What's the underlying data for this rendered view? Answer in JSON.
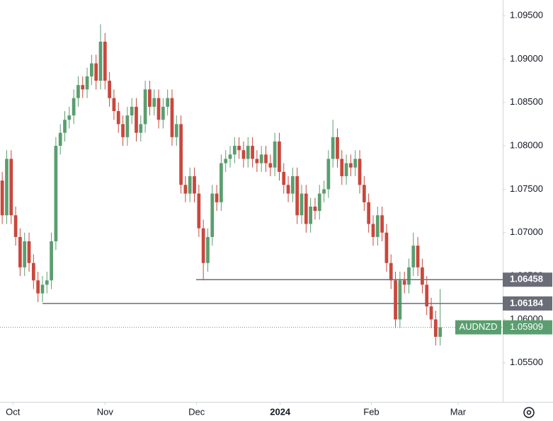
{
  "chart_data": {
    "type": "candlestick",
    "up_color": "#5a9e6f",
    "down_color": "#c9473d",
    "grid": false,
    "xlim": [
      -0.5,
      112
    ],
    "xticks": [
      {
        "value": 2.4,
        "label": "Oct"
      },
      {
        "value": 23,
        "label": "Nov"
      },
      {
        "value": 43.5,
        "label": "Dec"
      },
      {
        "value": 62.2,
        "label": "2024"
      },
      {
        "value": 82.6,
        "label": "Feb"
      },
      {
        "value": 102,
        "label": "Mar"
      }
    ],
    "ylim": [
      1.0505,
      1.0968
    ],
    "yticks": [
      {
        "value": 1.055,
        "label": "1.05500"
      },
      {
        "value": 1.06,
        "label": "1.06000"
      },
      {
        "value": 1.065,
        "label": "1.06500"
      },
      {
        "value": 1.07,
        "label": "1.07000"
      },
      {
        "value": 1.075,
        "label": "1.07500"
      },
      {
        "value": 1.08,
        "label": "1.08000"
      },
      {
        "value": 1.085,
        "label": "1.08500"
      },
      {
        "value": 1.09,
        "label": "1.09000"
      },
      {
        "value": 1.095,
        "label": "1.09500"
      }
    ],
    "open": [
      1.076,
      1.072,
      1.0785,
      1.072,
      1.0695,
      1.066,
      1.069,
      1.0665,
      1.0645,
      1.063,
      1.064,
      1.0645,
      1.069,
      1.08,
      1.0815,
      1.083,
      1.0835,
      1.0855,
      1.087,
      1.0865,
      1.088,
      1.0895,
      1.0875,
      1.092,
      1.0875,
      1.0855,
      1.084,
      1.0825,
      1.081,
      1.0835,
      1.0845,
      1.0815,
      1.0825,
      1.0865,
      1.0845,
      1.0855,
      1.083,
      1.0845,
      1.0855,
      1.081,
      1.0825,
      1.0755,
      1.0745,
      1.0765,
      1.0745,
      1.0705,
      1.0665,
      1.0695,
      1.0745,
      1.0735,
      1.078,
      1.0785,
      1.079,
      1.08,
      1.0795,
      1.0785,
      1.08,
      1.0785,
      1.078,
      1.079,
      1.078,
      1.0775,
      1.0805,
      1.077,
      1.0755,
      1.0745,
      1.0765,
      1.072,
      1.0745,
      1.071,
      1.073,
      1.0725,
      1.0745,
      1.075,
      1.0785,
      1.081,
      1.0785,
      1.0765,
      1.078,
      1.0775,
      1.0785,
      1.0755,
      1.0735,
      1.071,
      1.0695,
      1.072,
      1.07,
      1.0665,
      1.0645,
      1.06,
      1.0645,
      1.064,
      1.066,
      1.0685,
      1.066,
      1.064,
      1.0615,
      1.06,
      1.058
    ],
    "high": [
      1.077,
      1.0795,
      1.0795,
      1.073,
      1.0705,
      1.07,
      1.07,
      1.0675,
      1.0655,
      1.065,
      1.0655,
      1.07,
      1.081,
      1.0825,
      1.084,
      1.0845,
      1.0865,
      1.088,
      1.088,
      1.089,
      1.0905,
      1.0905,
      1.094,
      1.093,
      1.0885,
      1.0865,
      1.085,
      1.0835,
      1.0845,
      1.0855,
      1.0855,
      1.0835,
      1.0875,
      1.0875,
      1.0865,
      1.0865,
      1.0855,
      1.0865,
      1.0865,
      1.0835,
      1.0835,
      1.0765,
      1.0775,
      1.0775,
      1.0755,
      1.0715,
      1.0705,
      1.0755,
      1.0755,
      1.079,
      1.0795,
      1.08,
      1.081,
      1.081,
      1.0805,
      1.081,
      1.081,
      1.0795,
      1.08,
      1.08,
      1.079,
      1.0815,
      1.0815,
      1.078,
      1.0765,
      1.0775,
      1.0775,
      1.0755,
      1.0755,
      1.074,
      1.074,
      1.0755,
      1.076,
      1.0795,
      1.083,
      1.082,
      1.0795,
      1.079,
      1.079,
      1.0795,
      1.0795,
      1.0765,
      1.0745,
      1.072,
      1.073,
      1.073,
      1.071,
      1.0675,
      1.0655,
      1.0655,
      1.0655,
      1.067,
      1.07,
      1.0695,
      1.067,
      1.065,
      1.0625,
      1.061,
      1.0635
    ],
    "low": [
      1.071,
      1.071,
      1.071,
      1.0685,
      1.065,
      1.065,
      1.0655,
      1.0635,
      1.062,
      1.062,
      1.063,
      1.0635,
      1.068,
      1.079,
      1.0805,
      1.082,
      1.0825,
      1.0845,
      1.0855,
      1.0855,
      1.087,
      1.0865,
      1.0865,
      1.0865,
      1.0845,
      1.083,
      1.0815,
      1.08,
      1.08,
      1.0825,
      1.0805,
      1.0805,
      1.0815,
      1.0835,
      1.0835,
      1.082,
      1.082,
      1.0835,
      1.08,
      1.08,
      1.0745,
      1.0735,
      1.0735,
      1.0735,
      1.0695,
      1.0645,
      1.0655,
      1.0685,
      1.0725,
      1.0725,
      1.077,
      1.0775,
      1.078,
      1.0785,
      1.0775,
      1.0775,
      1.0775,
      1.077,
      1.077,
      1.077,
      1.0765,
      1.0765,
      1.076,
      1.0745,
      1.0735,
      1.0735,
      1.071,
      1.071,
      1.07,
      1.07,
      1.0715,
      1.0715,
      1.0735,
      1.074,
      1.0775,
      1.0775,
      1.0755,
      1.0755,
      1.0765,
      1.0765,
      1.0745,
      1.0725,
      1.07,
      1.0685,
      1.0685,
      1.069,
      1.0655,
      1.0635,
      1.059,
      1.059,
      1.063,
      1.063,
      1.065,
      1.065,
      1.063,
      1.0605,
      1.059,
      1.057,
      1.057
    ],
    "close": [
      1.072,
      1.0785,
      1.072,
      1.0695,
      1.066,
      1.069,
      1.0665,
      1.0645,
      1.063,
      1.064,
      1.0645,
      1.069,
      1.08,
      1.0815,
      1.083,
      1.0835,
      1.0855,
      1.087,
      1.0865,
      1.088,
      1.0895,
      1.0875,
      1.092,
      1.0875,
      1.0855,
      1.084,
      1.0825,
      1.081,
      1.0835,
      1.0845,
      1.0815,
      1.0825,
      1.0865,
      1.0845,
      1.0855,
      1.083,
      1.0845,
      1.0855,
      1.081,
      1.0825,
      1.0755,
      1.0745,
      1.0765,
      1.0745,
      1.0705,
      1.0665,
      1.0695,
      1.0745,
      1.0735,
      1.078,
      1.0785,
      1.079,
      1.08,
      1.0795,
      1.0785,
      1.08,
      1.0785,
      1.078,
      1.079,
      1.078,
      1.0775,
      1.0805,
      1.077,
      1.0755,
      1.0745,
      1.0765,
      1.072,
      1.0745,
      1.071,
      1.073,
      1.0725,
      1.0745,
      1.075,
      1.0785,
      1.081,
      1.0785,
      1.0765,
      1.078,
      1.0775,
      1.0785,
      1.0755,
      1.0735,
      1.071,
      1.0695,
      1.072,
      1.07,
      1.0665,
      1.0645,
      1.06,
      1.0645,
      1.064,
      1.066,
      1.0685,
      1.066,
      1.064,
      1.0615,
      1.06,
      1.058,
      1.05909
    ],
    "levels": [
      {
        "value": 1.06458,
        "label": "1.06458",
        "from": 43.4
      },
      {
        "value": 1.06184,
        "label": "1.06184",
        "from": 9
      }
    ],
    "current": {
      "name": "AUDNZD",
      "value": 1.05909,
      "label": "1.05909",
      "color": "#5a9e6f"
    }
  }
}
